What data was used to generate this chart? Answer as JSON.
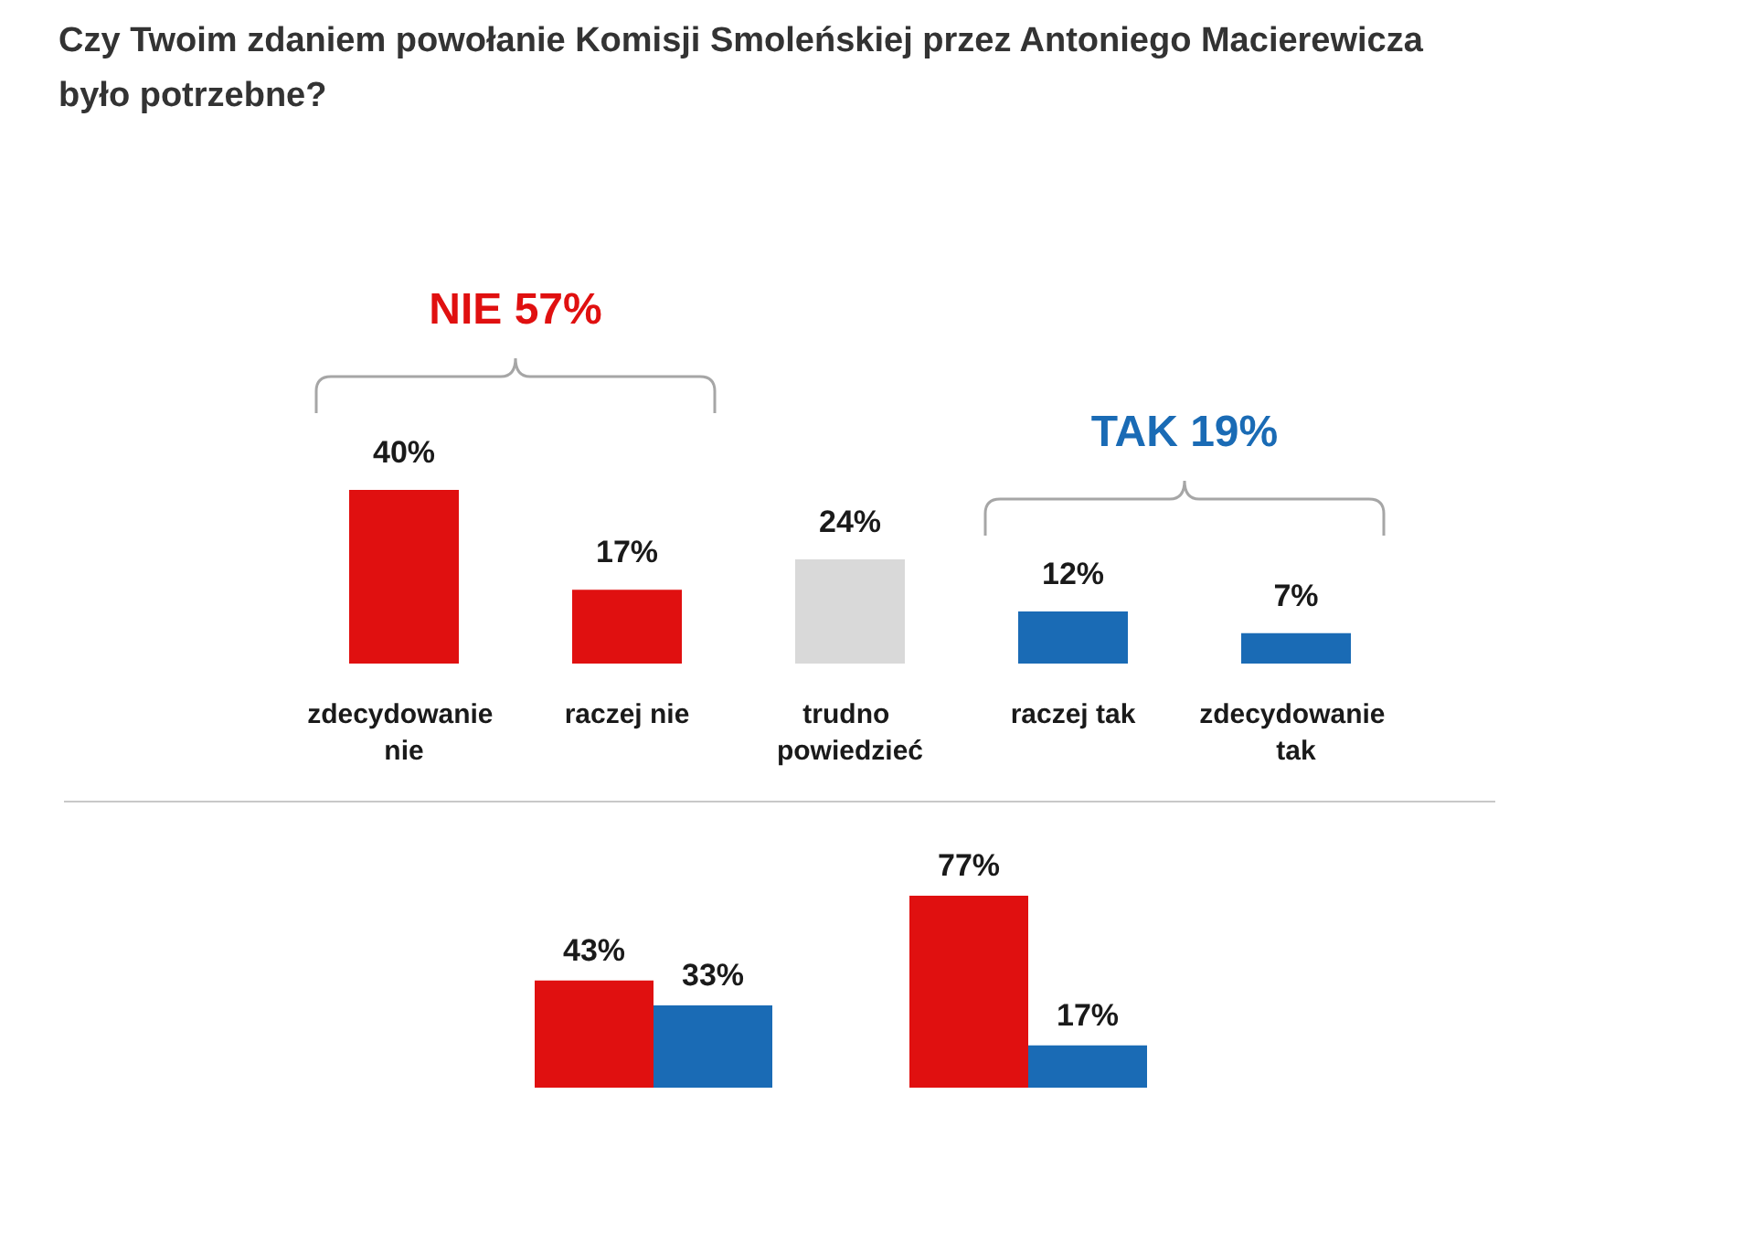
{
  "chart_data": [
    {
      "type": "bar",
      "title": "Czy Twoim zdaniem powołanie Komisji Smoleńskiej przez Antoniego Macierewicza było potrzebne?",
      "categories": [
        "zdecydowanie nie",
        "raczej nie",
        "trudno powiedzieć",
        "raczej tak",
        "zdecydowanie tak"
      ],
      "values": [
        40,
        17,
        24,
        12,
        7
      ],
      "colors": [
        "#e01010",
        "#e01010",
        "#d9d9d9",
        "#1a6bb5",
        "#1a6bb5"
      ],
      "value_labels": [
        "40%",
        "17%",
        "24%",
        "12%",
        "7%"
      ],
      "annotations": [
        "NIE 57%",
        "TAK 19%"
      ]
    },
    {
      "type": "bar",
      "categories": [
        null,
        null
      ],
      "series": [
        {
          "color": "#e01010",
          "values": [
            43,
            77
          ],
          "value_labels": [
            "43%",
            "77%"
          ]
        },
        {
          "color": "#1a6bb5",
          "values": [
            33,
            17
          ],
          "value_labels": [
            "33%",
            "17%"
          ]
        }
      ]
    }
  ]
}
